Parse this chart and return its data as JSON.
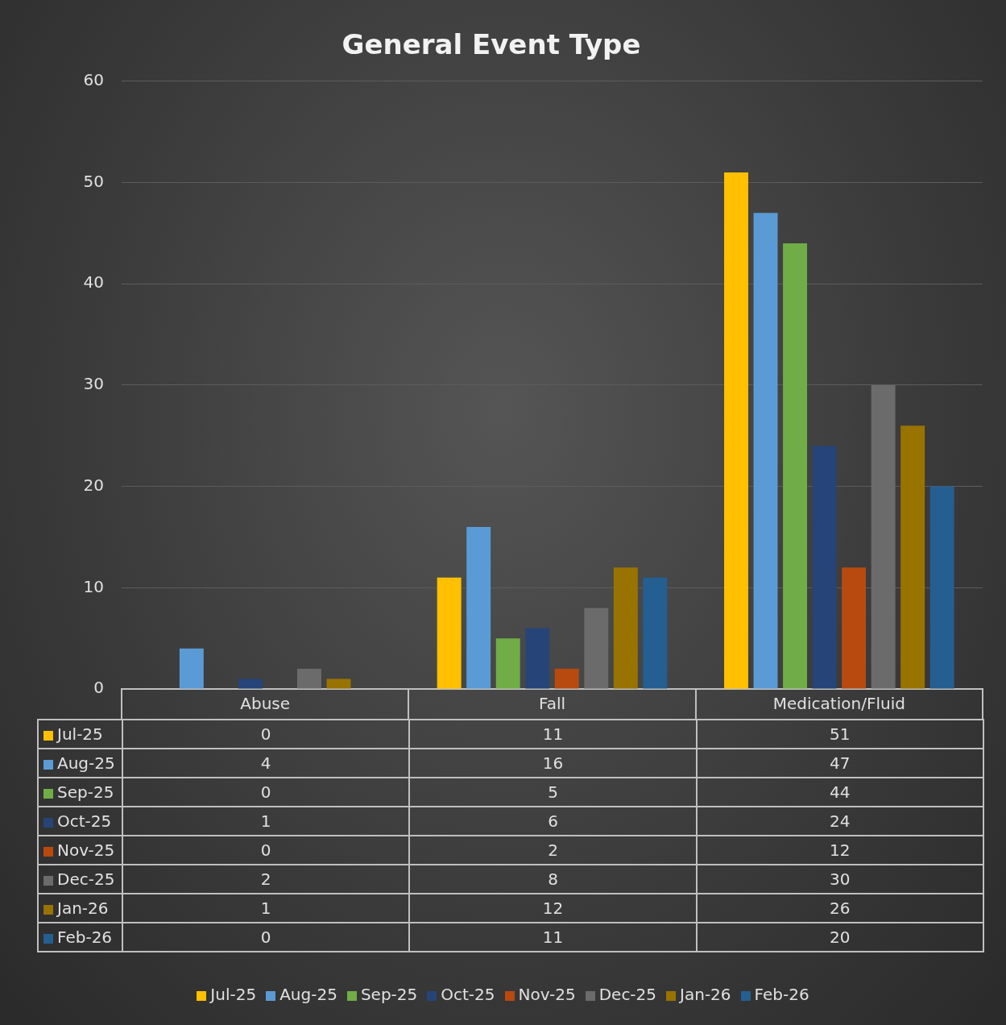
{
  "chart_data": {
    "type": "bar",
    "title": "General Event Type",
    "categories": [
      "Abuse",
      "Fall",
      "Medication/Fluid"
    ],
    "series": [
      {
        "name": "Jul-25",
        "color": "#ffc000",
        "values": [
          0,
          11,
          51
        ]
      },
      {
        "name": "Aug-25",
        "color": "#5b9bd5",
        "values": [
          4,
          16,
          47
        ]
      },
      {
        "name": "Sep-25",
        "color": "#70ad47",
        "values": [
          0,
          5,
          44
        ]
      },
      {
        "name": "Oct-25",
        "color": "#264478",
        "values": [
          1,
          6,
          24
        ]
      },
      {
        "name": "Nov-25",
        "color": "#b84a10",
        "values": [
          0,
          2,
          12
        ]
      },
      {
        "name": "Dec-25",
        "color": "#6b6b6b",
        "values": [
          2,
          8,
          30
        ]
      },
      {
        "name": "Jan-26",
        "color": "#997300",
        "values": [
          1,
          12,
          26
        ]
      },
      {
        "name": "Feb-26",
        "color": "#255e91",
        "values": [
          0,
          11,
          20
        ]
      }
    ],
    "ylim": [
      0,
      60
    ],
    "yticks": [
      0,
      10,
      20,
      30,
      40,
      50,
      60
    ],
    "grid": "y",
    "legend": "bottom",
    "data_labels": true
  }
}
